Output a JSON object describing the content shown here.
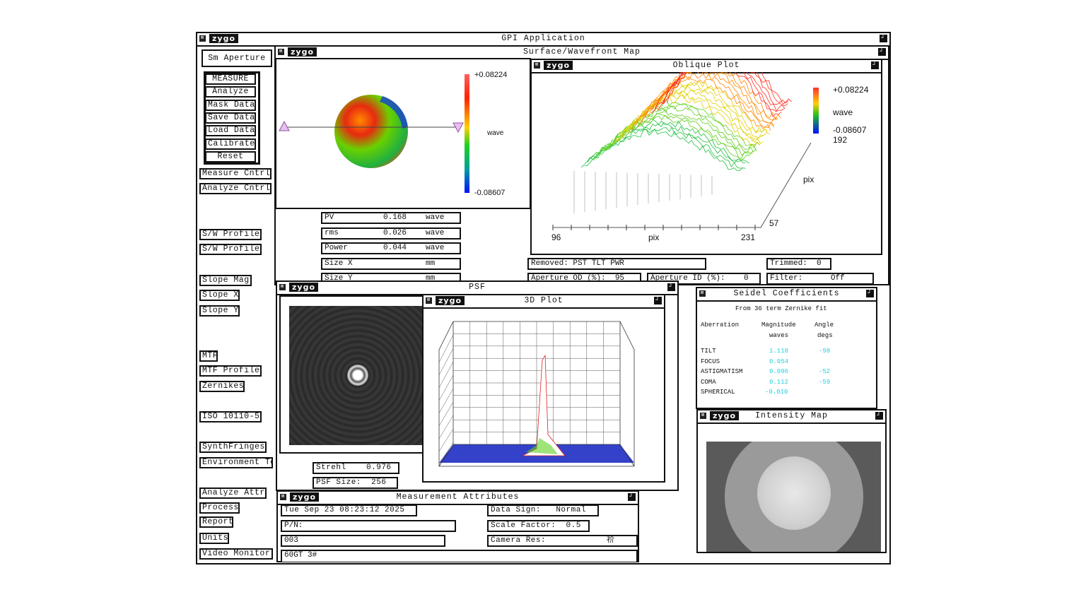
{
  "app": {
    "title": "GPI Application",
    "logo": "zygo"
  },
  "sidebar": {
    "aperture": "Sm Aperture",
    "group": [
      "MEASURE",
      "Analyze",
      "Mask Data",
      "Save Data",
      "Load Data",
      "Calibrate",
      "Reset"
    ],
    "items": [
      "Measure Cntrl",
      "Analyze Cntrl",
      "S/W Profile",
      "S/W Profile",
      "Slope Mag",
      "Slope X",
      "Slope Y",
      "MTF",
      "MTF Profile",
      "Zernikes",
      "ISO 10110-5",
      "SynthFringes",
      "Environment Te",
      "Analyze Attr",
      "Process",
      "Report",
      "Units",
      "Video Monitor"
    ]
  },
  "surface": {
    "title": "Surface/Wavefront Map",
    "scale_max": "+0.08224",
    "scale_min": "-0.08607",
    "unit": "wave",
    "stats": [
      {
        "label": "PV",
        "value": "0.168",
        "unit": "wave"
      },
      {
        "label": "rms",
        "value": "0.026",
        "unit": "wave"
      },
      {
        "label": "Power",
        "value": "0.044",
        "unit": "wave"
      },
      {
        "label": "Size X",
        "value": "",
        "unit": "mm"
      },
      {
        "label": "Size Y",
        "value": "",
        "unit": "mm"
      }
    ],
    "removed": "Removed: PST TLT PWR",
    "trimmed": "Trimmed:  0",
    "aperture_od": "Aperture OD (%):  95",
    "aperture_id": "Aperture ID (%):    0",
    "filter": "Filter:      Off"
  },
  "oblique": {
    "title": "Oblique Plot",
    "scale_max": "+0.08224",
    "unit": "wave",
    "scale_min": "-0.08607",
    "y_max": "192",
    "y_label": "pix",
    "y_min": "57",
    "x_min": "96",
    "x_label": "pix",
    "x_max": "231"
  },
  "psf": {
    "title": "PSF",
    "strehl": "Strehl    0.976",
    "size": "PSF Size:  256"
  },
  "plot3d": {
    "title": "3D Plot"
  },
  "seidel": {
    "title": "Seidel Coefficients",
    "subtitle": "From 36 term Zernike fit",
    "headers": [
      "Aberration",
      "Magnitude",
      "Angle"
    ],
    "subheaders": [
      "waves",
      "degs"
    ],
    "rows": [
      {
        "name": "TILT",
        "mag": "1.118",
        "angle": "-98"
      },
      {
        "name": "FOCUS",
        "mag": "0.054",
        "angle": ""
      },
      {
        "name": "ASTIGMATISM",
        "mag": "0.096",
        "angle": "-52"
      },
      {
        "name": "COMA",
        "mag": "0.112",
        "angle": "-59"
      },
      {
        "name": "SPHERICAL",
        "mag": "-0.010",
        "angle": ""
      }
    ]
  },
  "intensity": {
    "title": "Intensity Map"
  },
  "attrs": {
    "title": "Measurement Attributes",
    "date": "Tue Sep 23 08:23:12 2025",
    "pn": "P/N:",
    "id": "003",
    "note": "60GT 3#",
    "data_sign": "Data Sign:   Normal",
    "scale_factor": "Scale Factor:  0.5",
    "camera_res": "Camera Res:",
    "camera_res_value": "祄"
  },
  "colors": {
    "frame": "#111111",
    "accent_cyan": "#20d0e0"
  }
}
